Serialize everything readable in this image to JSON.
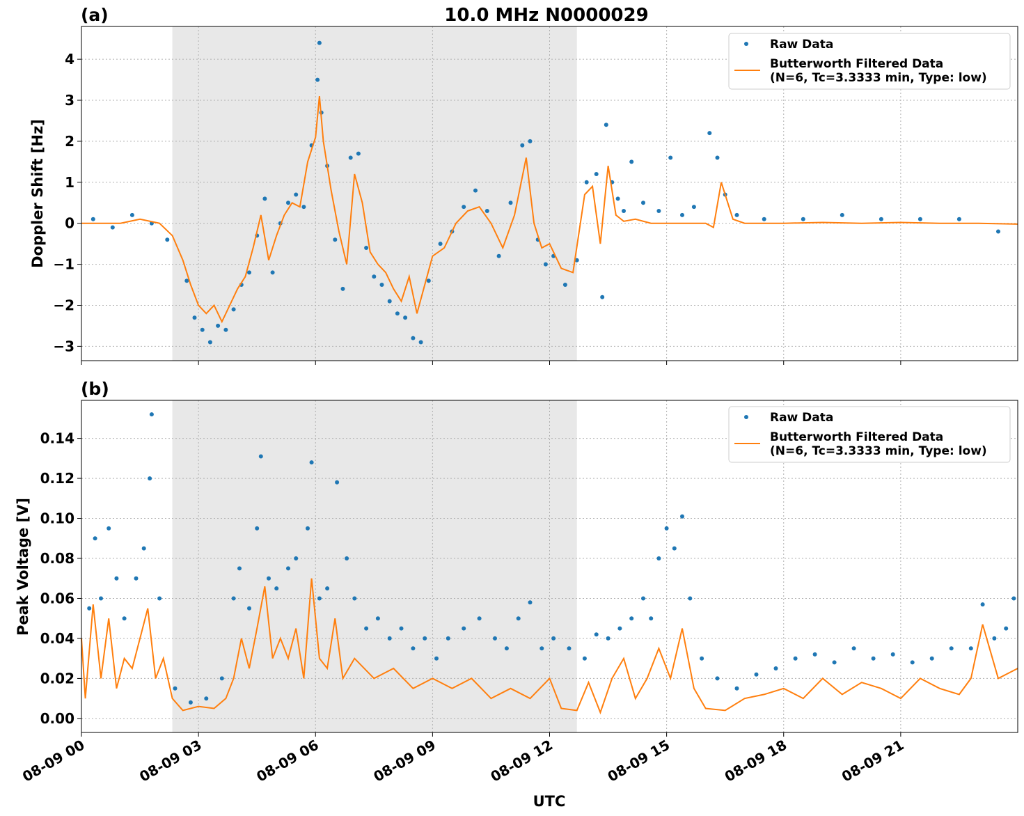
{
  "figure": {
    "title": "10.0 MHz N0000029",
    "xlabel": "UTC",
    "x_tick_labels": [
      "08-09 00",
      "08-09 03",
      "08-09 06",
      "08-09 09",
      "08-09 12",
      "08-09 15",
      "08-09 18",
      "08-09 21"
    ],
    "colors": {
      "raw": "#1f77b4",
      "filtered": "#ff7f0e",
      "shade": "#e8e8e8",
      "grid": "#b0b0b0"
    }
  },
  "chart_data": [
    {
      "panel_label": "(a)",
      "type": "scatter",
      "ylabel": "Doppler Shift [Hz]",
      "xlim_hours": [
        0,
        24
      ],
      "ylim": [
        -3.35,
        4.8
      ],
      "y_ticks": [
        -3,
        -2,
        -1,
        0,
        1,
        2,
        3,
        4
      ],
      "y_tick_labels": [
        "−3",
        "−2",
        "−1",
        "0",
        "1",
        "2",
        "3",
        "4"
      ],
      "grid": true,
      "shaded_interval_hours": [
        2.33,
        12.7
      ],
      "legend": {
        "location": "top-right",
        "entries": [
          "Raw Data",
          "Butterworth Filtered Data",
          "(N=6, Tc=3.3333 min, Type: low)"
        ]
      },
      "series": [
        {
          "name": "Butterworth Filtered Data",
          "kind": "line",
          "x_hours": [
            0,
            0.5,
            1.0,
            1.5,
            2.0,
            2.33,
            2.6,
            2.8,
            3.0,
            3.2,
            3.4,
            3.6,
            3.8,
            4.0,
            4.2,
            4.4,
            4.6,
            4.8,
            5.0,
            5.2,
            5.4,
            5.6,
            5.8,
            6.0,
            6.1,
            6.2,
            6.4,
            6.6,
            6.8,
            7.0,
            7.2,
            7.4,
            7.6,
            7.8,
            8.0,
            8.2,
            8.4,
            8.6,
            8.8,
            9.0,
            9.3,
            9.6,
            9.9,
            10.2,
            10.5,
            10.8,
            11.1,
            11.4,
            11.6,
            11.8,
            12.0,
            12.3,
            12.6,
            12.9,
            13.1,
            13.3,
            13.5,
            13.7,
            13.9,
            14.2,
            14.6,
            15.0,
            15.5,
            16.0,
            16.2,
            16.4,
            16.7,
            17.0,
            18.0,
            19.0,
            20.0,
            21.0,
            22.0,
            23.0,
            24.0
          ],
          "y": [
            0.0,
            0.0,
            0.0,
            0.1,
            0.0,
            -0.3,
            -0.9,
            -1.5,
            -2.0,
            -2.2,
            -2.0,
            -2.4,
            -2.0,
            -1.6,
            -1.3,
            -0.6,
            0.2,
            -0.9,
            -0.3,
            0.2,
            0.5,
            0.4,
            1.5,
            2.1,
            3.1,
            2.0,
            0.8,
            -0.2,
            -1.0,
            1.2,
            0.5,
            -0.7,
            -1.0,
            -1.2,
            -1.6,
            -1.9,
            -1.3,
            -2.2,
            -1.5,
            -0.8,
            -0.6,
            0.0,
            0.3,
            0.4,
            0.0,
            -0.6,
            0.2,
            1.6,
            0.0,
            -0.6,
            -0.5,
            -1.1,
            -1.2,
            0.7,
            0.9,
            -0.5,
            1.4,
            0.2,
            0.05,
            0.1,
            0.0,
            0.0,
            0.0,
            0.0,
            -0.1,
            1.0,
            0.1,
            0.0,
            0.0,
            0.02,
            0.0,
            0.02,
            0.0,
            0.0,
            -0.02
          ]
        },
        {
          "name": "Raw Data",
          "kind": "scatter",
          "x_hours": [
            0.3,
            0.8,
            1.3,
            1.8,
            2.2,
            2.7,
            2.9,
            3.1,
            3.3,
            3.5,
            3.7,
            3.9,
            4.1,
            4.3,
            4.5,
            4.7,
            4.9,
            5.1,
            5.3,
            5.5,
            5.7,
            5.9,
            6.05,
            6.1,
            6.15,
            6.3,
            6.5,
            6.7,
            6.9,
            7.1,
            7.3,
            7.5,
            7.7,
            7.9,
            8.1,
            8.3,
            8.5,
            8.7,
            8.9,
            9.2,
            9.5,
            9.8,
            10.1,
            10.4,
            10.7,
            11.0,
            11.3,
            11.5,
            11.7,
            11.9,
            12.1,
            12.4,
            12.7,
            12.95,
            13.2,
            13.35,
            13.45,
            13.6,
            13.75,
            13.9,
            14.1,
            14.4,
            14.8,
            15.1,
            15.4,
            15.7,
            16.1,
            16.3,
            16.5,
            16.8,
            17.5,
            18.5,
            19.5,
            20.5,
            21.5,
            22.5,
            23.5
          ],
          "y": [
            0.1,
            -0.1,
            0.2,
            0.0,
            -0.4,
            -1.4,
            -2.3,
            -2.6,
            -2.9,
            -2.5,
            -2.6,
            -2.1,
            -1.5,
            -1.2,
            -0.3,
            0.6,
            -1.2,
            0.0,
            0.5,
            0.7,
            0.4,
            1.9,
            3.5,
            4.4,
            2.7,
            1.4,
            -0.4,
            -1.6,
            1.6,
            1.7,
            -0.6,
            -1.3,
            -1.5,
            -1.9,
            -2.2,
            -2.3,
            -2.8,
            -2.9,
            -1.4,
            -0.5,
            -0.2,
            0.4,
            0.8,
            0.3,
            -0.8,
            0.5,
            1.9,
            2.0,
            -0.4,
            -1.0,
            -0.8,
            -1.5,
            -0.9,
            1.0,
            1.2,
            -1.8,
            2.4,
            1.0,
            0.6,
            0.3,
            1.5,
            0.5,
            0.3,
            1.6,
            0.2,
            0.4,
            2.2,
            1.6,
            0.7,
            0.2,
            0.1,
            0.1,
            0.2,
            0.1,
            0.1,
            0.1,
            -0.2
          ]
        }
      ]
    },
    {
      "panel_label": "(b)",
      "type": "scatter",
      "ylabel": "Peak Voltage [V]",
      "xlim_hours": [
        0,
        24
      ],
      "ylim": [
        -0.007,
        0.159
      ],
      "y_ticks": [
        0.0,
        0.02,
        0.04,
        0.06,
        0.08,
        0.1,
        0.12,
        0.14
      ],
      "y_tick_labels": [
        "0.00",
        "0.02",
        "0.04",
        "0.06",
        "0.08",
        "0.10",
        "0.12",
        "0.14"
      ],
      "grid": true,
      "shaded_interval_hours": [
        2.33,
        12.7
      ],
      "legend": {
        "location": "top-right",
        "entries": [
          "Raw Data",
          "Butterworth Filtered Data",
          "(N=6, Tc=3.3333 min, Type: low)"
        ]
      },
      "series": [
        {
          "name": "Butterworth Filtered Data",
          "kind": "line",
          "x_hours": [
            0,
            0.1,
            0.3,
            0.5,
            0.7,
            0.9,
            1.1,
            1.3,
            1.5,
            1.7,
            1.9,
            2.1,
            2.33,
            2.6,
            3.0,
            3.4,
            3.7,
            3.9,
            4.1,
            4.3,
            4.5,
            4.7,
            4.9,
            5.1,
            5.3,
            5.5,
            5.7,
            5.9,
            6.1,
            6.3,
            6.5,
            6.7,
            7.0,
            7.5,
            8.0,
            8.5,
            9.0,
            9.5,
            10.0,
            10.5,
            11.0,
            11.5,
            12.0,
            12.3,
            12.7,
            13.0,
            13.3,
            13.6,
            13.9,
            14.2,
            14.5,
            14.8,
            15.1,
            15.4,
            15.7,
            16.0,
            16.5,
            17.0,
            17.5,
            18.0,
            18.5,
            19.0,
            19.5,
            20.0,
            20.5,
            21.0,
            21.5,
            22.0,
            22.5,
            22.8,
            23.1,
            23.5,
            24.0
          ],
          "y": [
            0.04,
            0.01,
            0.057,
            0.02,
            0.05,
            0.015,
            0.03,
            0.025,
            0.04,
            0.055,
            0.02,
            0.03,
            0.01,
            0.004,
            0.006,
            0.005,
            0.01,
            0.02,
            0.04,
            0.025,
            0.045,
            0.066,
            0.03,
            0.04,
            0.03,
            0.045,
            0.02,
            0.07,
            0.03,
            0.025,
            0.05,
            0.02,
            0.03,
            0.02,
            0.025,
            0.015,
            0.02,
            0.015,
            0.02,
            0.01,
            0.015,
            0.01,
            0.02,
            0.005,
            0.004,
            0.018,
            0.003,
            0.02,
            0.03,
            0.01,
            0.02,
            0.035,
            0.02,
            0.045,
            0.015,
            0.005,
            0.004,
            0.01,
            0.012,
            0.015,
            0.01,
            0.02,
            0.012,
            0.018,
            0.015,
            0.01,
            0.02,
            0.015,
            0.012,
            0.02,
            0.047,
            0.02,
            0.025
          ]
        },
        {
          "name": "Raw Data",
          "kind": "scatter",
          "x_hours": [
            0.2,
            0.35,
            0.5,
            0.7,
            0.9,
            1.1,
            1.4,
            1.6,
            1.75,
            1.8,
            2.0,
            2.4,
            2.8,
            3.2,
            3.6,
            3.9,
            4.05,
            4.3,
            4.5,
            4.6,
            4.8,
            5.0,
            5.3,
            5.5,
            5.8,
            5.9,
            6.1,
            6.3,
            6.55,
            6.8,
            7.0,
            7.3,
            7.6,
            7.9,
            8.2,
            8.5,
            8.8,
            9.1,
            9.4,
            9.8,
            10.2,
            10.6,
            10.9,
            11.2,
            11.5,
            11.8,
            12.1,
            12.5,
            12.9,
            13.2,
            13.5,
            13.8,
            14.1,
            14.4,
            14.6,
            14.8,
            15.0,
            15.2,
            15.4,
            15.6,
            15.9,
            16.3,
            16.8,
            17.3,
            17.8,
            18.3,
            18.8,
            19.3,
            19.8,
            20.3,
            20.8,
            21.3,
            21.8,
            22.3,
            22.8,
            23.1,
            23.4,
            23.7,
            23.9
          ],
          "y": [
            0.055,
            0.09,
            0.06,
            0.095,
            0.07,
            0.05,
            0.07,
            0.085,
            0.12,
            0.152,
            0.06,
            0.015,
            0.008,
            0.01,
            0.02,
            0.06,
            0.075,
            0.055,
            0.095,
            0.131,
            0.07,
            0.065,
            0.075,
            0.08,
            0.095,
            0.128,
            0.06,
            0.065,
            0.118,
            0.08,
            0.06,
            0.045,
            0.05,
            0.04,
            0.045,
            0.035,
            0.04,
            0.03,
            0.04,
            0.045,
            0.05,
            0.04,
            0.035,
            0.05,
            0.058,
            0.035,
            0.04,
            0.035,
            0.03,
            0.042,
            0.04,
            0.045,
            0.05,
            0.06,
            0.05,
            0.08,
            0.095,
            0.085,
            0.101,
            0.06,
            0.03,
            0.02,
            0.015,
            0.022,
            0.025,
            0.03,
            0.032,
            0.028,
            0.035,
            0.03,
            0.032,
            0.028,
            0.03,
            0.035,
            0.035,
            0.057,
            0.04,
            0.045,
            0.06
          ]
        }
      ]
    }
  ]
}
